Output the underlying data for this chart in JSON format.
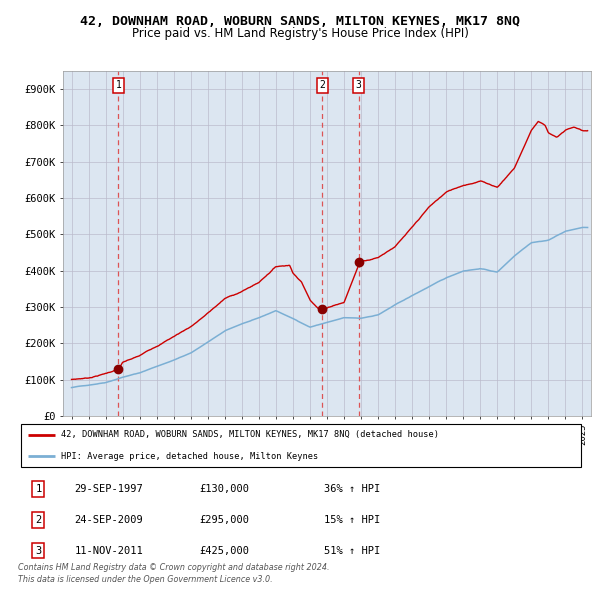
{
  "title": "42, DOWNHAM ROAD, WOBURN SANDS, MILTON KEYNES, MK17 8NQ",
  "subtitle": "Price paid vs. HM Land Registry's House Price Index (HPI)",
  "xlim": [
    1994.5,
    2025.5
  ],
  "ylim": [
    0,
    950000
  ],
  "yticks": [
    0,
    100000,
    200000,
    300000,
    400000,
    500000,
    600000,
    700000,
    800000,
    900000
  ],
  "ytick_labels": [
    "£0",
    "£100K",
    "£200K",
    "£300K",
    "£400K",
    "£500K",
    "£600K",
    "£700K",
    "£800K",
    "£900K"
  ],
  "sales": [
    {
      "date": 1997.747,
      "price": 130000,
      "label": "1",
      "pct": "36% ↑ HPI",
      "display_date": "29-SEP-1997"
    },
    {
      "date": 2009.73,
      "price": 295000,
      "label": "2",
      "pct": "15% ↑ HPI",
      "display_date": "24-SEP-2009"
    },
    {
      "date": 2011.86,
      "price": 425000,
      "label": "3",
      "pct": "51% ↑ HPI",
      "display_date": "11-NOV-2011"
    }
  ],
  "red_line_color": "#cc0000",
  "blue_line_color": "#7bafd4",
  "dashed_color": "#dd4444",
  "dot_color": "#880000",
  "grid_color": "#bbbbcc",
  "bg_color": "#dce6f1",
  "legend_label_red": "42, DOWNHAM ROAD, WOBURN SANDS, MILTON KEYNES, MK17 8NQ (detached house)",
  "legend_label_blue": "HPI: Average price, detached house, Milton Keynes",
  "footer1": "Contains HM Land Registry data © Crown copyright and database right 2024.",
  "footer2": "This data is licensed under the Open Government Licence v3.0.",
  "title_fontsize": 9.5,
  "subtitle_fontsize": 8.5
}
